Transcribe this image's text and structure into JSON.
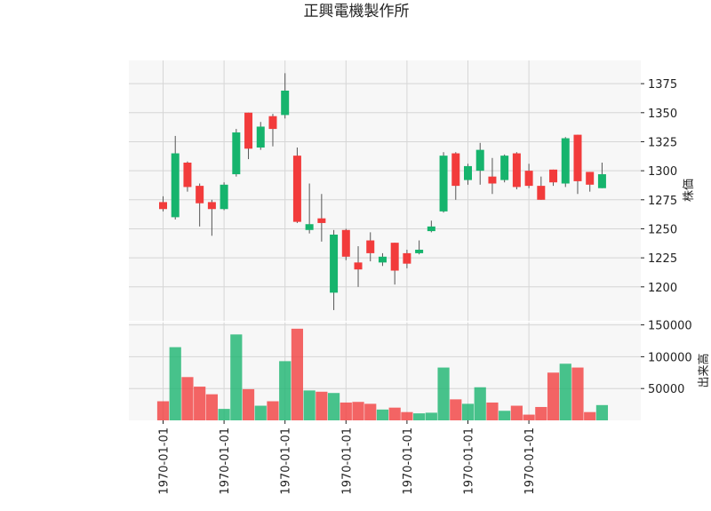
{
  "chart_data": [
    {
      "type": "candlestick",
      "title": "正興電機製作所",
      "ylabel": "株価",
      "ylim": [
        1170,
        1395
      ],
      "yticks": [
        1200,
        1225,
        1250,
        1275,
        1300,
        1325,
        1350,
        1375
      ],
      "grid": true,
      "x_tick_labels": [
        "1970-01-01",
        "1970-01-01",
        "1970-01-01",
        "1970-01-01",
        "1970-01-01",
        "1970-01-01",
        "1970-01-01"
      ],
      "x_tick_indices": [
        0,
        5,
        10,
        15,
        20,
        25,
        30
      ],
      "up_color": "#16b46d",
      "down_color": "#f23b3b",
      "candles": [
        {
          "open": 1273,
          "high": 1278,
          "low": 1265,
          "close": 1267
        },
        {
          "open": 1260,
          "high": 1330,
          "low": 1258,
          "close": 1315
        },
        {
          "open": 1307,
          "high": 1308,
          "low": 1282,
          "close": 1286
        },
        {
          "open": 1287,
          "high": 1289,
          "low": 1252,
          "close": 1272
        },
        {
          "open": 1273,
          "high": 1275,
          "low": 1244,
          "close": 1267
        },
        {
          "open": 1267,
          "high": 1290,
          "low": 1266,
          "close": 1288
        },
        {
          "open": 1297,
          "high": 1336,
          "low": 1295,
          "close": 1333
        },
        {
          "open": 1350,
          "high": 1350,
          "low": 1310,
          "close": 1319
        },
        {
          "open": 1320,
          "high": 1342,
          "low": 1318,
          "close": 1338
        },
        {
          "open": 1347,
          "high": 1349,
          "low": 1321,
          "close": 1336
        },
        {
          "open": 1348,
          "high": 1384,
          "low": 1345,
          "close": 1369
        },
        {
          "open": 1313,
          "high": 1320,
          "low": 1255,
          "close": 1256
        },
        {
          "open": 1249,
          "high": 1289,
          "low": 1246,
          "close": 1254
        },
        {
          "open": 1259,
          "high": 1280,
          "low": 1239,
          "close": 1255
        },
        {
          "open": 1195,
          "high": 1249,
          "low": 1180,
          "close": 1245
        },
        {
          "open": 1249,
          "high": 1250,
          "low": 1223,
          "close": 1226
        },
        {
          "open": 1221,
          "high": 1235,
          "low": 1200,
          "close": 1215
        },
        {
          "open": 1240,
          "high": 1247,
          "low": 1222,
          "close": 1229
        },
        {
          "open": 1221,
          "high": 1229,
          "low": 1218,
          "close": 1226
        },
        {
          "open": 1238,
          "high": 1238,
          "low": 1202,
          "close": 1214
        },
        {
          "open": 1229,
          "high": 1232,
          "low": 1216,
          "close": 1220
        },
        {
          "open": 1229,
          "high": 1240,
          "low": 1228,
          "close": 1232
        },
        {
          "open": 1248,
          "high": 1257,
          "low": 1247,
          "close": 1252
        },
        {
          "open": 1265,
          "high": 1316,
          "low": 1264,
          "close": 1313
        },
        {
          "open": 1315,
          "high": 1316,
          "low": 1275,
          "close": 1287
        },
        {
          "open": 1292,
          "high": 1306,
          "low": 1288,
          "close": 1304
        },
        {
          "open": 1300,
          "high": 1324,
          "low": 1288,
          "close": 1318
        },
        {
          "open": 1295,
          "high": 1311,
          "low": 1280,
          "close": 1289
        },
        {
          "open": 1292,
          "high": 1314,
          "low": 1290,
          "close": 1313
        },
        {
          "open": 1315,
          "high": 1316,
          "low": 1284,
          "close": 1286
        },
        {
          "open": 1300,
          "high": 1306,
          "low": 1285,
          "close": 1287
        },
        {
          "open": 1287,
          "high": 1295,
          "low": 1275,
          "close": 1275
        },
        {
          "open": 1301,
          "high": 1301,
          "low": 1287,
          "close": 1290
        },
        {
          "open": 1289,
          "high": 1329,
          "low": 1286,
          "close": 1328
        },
        {
          "open": 1331,
          "high": 1331,
          "low": 1280,
          "close": 1291
        },
        {
          "open": 1299,
          "high": 1299,
          "low": 1282,
          "close": 1288
        },
        {
          "open": 1285,
          "high": 1307,
          "low": 1285,
          "close": 1297
        }
      ]
    },
    {
      "type": "bar",
      "ylabel": "出来高",
      "ylim": [
        0,
        155000
      ],
      "yticks": [
        50000,
        100000,
        150000
      ],
      "grid": true,
      "up_color": "#16b46d",
      "down_color": "#f23b3b",
      "values": [
        30000,
        115000,
        68000,
        53000,
        41000,
        18000,
        135000,
        49000,
        23000,
        30000,
        93000,
        144000,
        47000,
        45000,
        43000,
        28000,
        29000,
        26000,
        17000,
        20000,
        13000,
        11000,
        12000,
        83000,
        33000,
        26000,
        52000,
        28000,
        15000,
        23000,
        9000,
        21000,
        75000,
        89000,
        83000,
        13000,
        24000
      ]
    }
  ]
}
